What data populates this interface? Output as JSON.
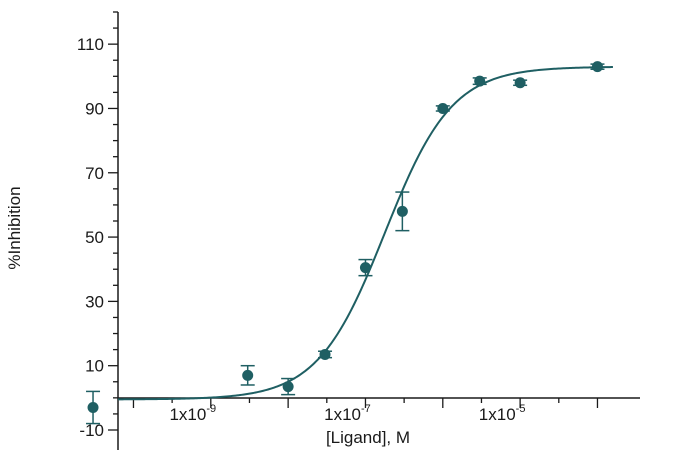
{
  "chart_data": {
    "type": "scatter",
    "xscale": "log",
    "xlabel": "[Ligand], M",
    "ylabel": "%Inhibition",
    "xlim": [
      1e-11,
      0.0003
    ],
    "ylim": [
      -10,
      120
    ],
    "x_ticks": [
      {
        "value": 1e-09,
        "base": "1x10",
        "exp": "-9"
      },
      {
        "value": 1e-07,
        "base": "1x10",
        "exp": "-7"
      },
      {
        "value": 1e-05,
        "base": "1x10",
        "exp": "-5"
      }
    ],
    "y_ticks": [
      -10,
      10,
      30,
      50,
      70,
      90,
      110
    ],
    "color": "#1f5f63",
    "series": [
      {
        "points": [
          {
            "x": 3e-11,
            "y": -3,
            "err": 5
          },
          {
            "x": 3e-09,
            "y": 7,
            "err": 3
          },
          {
            "x": 1e-08,
            "y": 3.5,
            "err": 2.5
          },
          {
            "x": 3e-08,
            "y": 13.5,
            "err": 1
          },
          {
            "x": 1e-07,
            "y": 40.5,
            "err": 2.5
          },
          {
            "x": 3e-07,
            "y": 58,
            "err": 6
          },
          {
            "x": 1e-06,
            "y": 90,
            "err": 0.8
          },
          {
            "x": 3e-06,
            "y": 98.5,
            "err": 1
          },
          {
            "x": 1e-05,
            "y": 98,
            "err": 0.8
          },
          {
            "x": 0.0001,
            "y": 103,
            "err": 0.8
          }
        ]
      }
    ],
    "fit": {
      "bottom": -0.5,
      "top": 103,
      "logEC50": -6.75,
      "hill": 1.0
    }
  }
}
